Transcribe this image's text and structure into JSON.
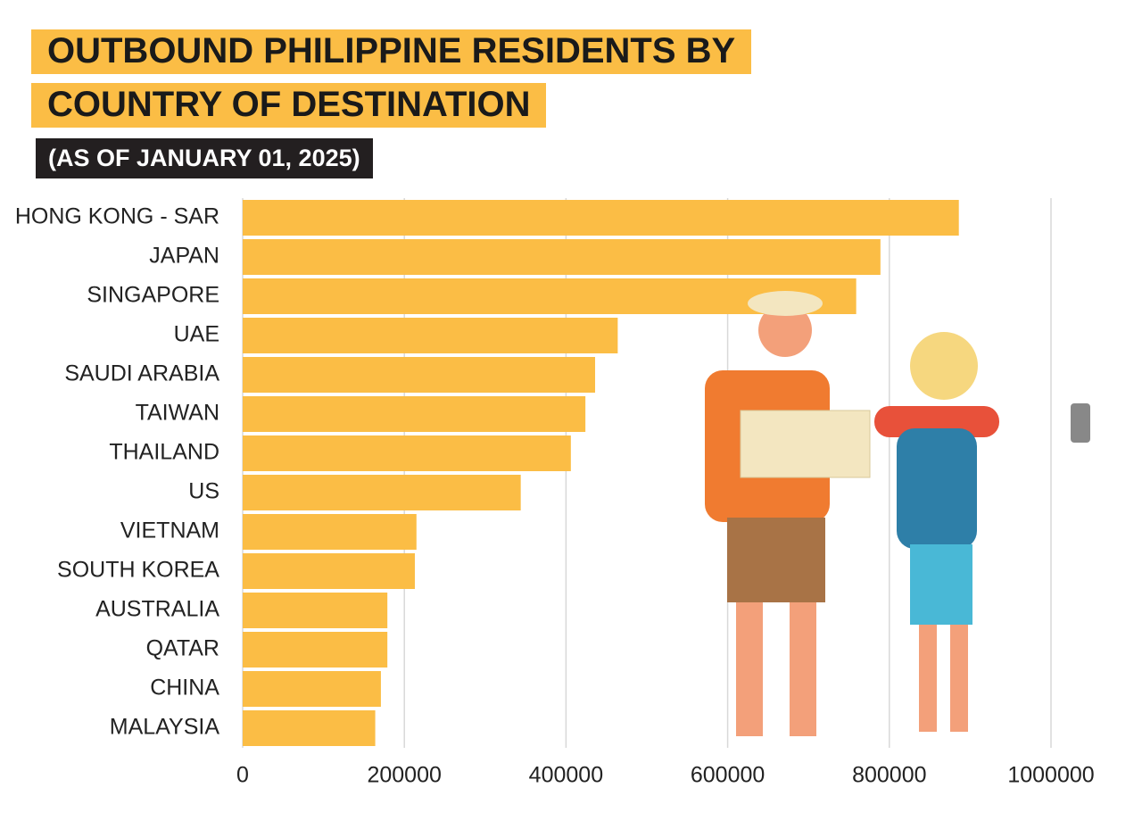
{
  "chart_data": {
    "type": "bar",
    "orientation": "horizontal",
    "title": "OUTBOUND PHILIPPINE RESIDENTS BY COUNTRY OF DESTINATION",
    "subtitle": "(AS OF JANUARY 01, 2025)",
    "categories": [
      "HONG KONG - SAR",
      "JAPAN",
      "SINGAPORE",
      "UAE",
      "SAUDI ARABIA",
      "TAIWAN",
      "THAILAND",
      "US",
      "VIETNAM",
      "SOUTH KOREA",
      "AUSTRALIA",
      "QATAR",
      "CHINA",
      "MALAYSIA"
    ],
    "values": [
      886000,
      789000,
      759000,
      464000,
      436000,
      424000,
      406000,
      344000,
      215000,
      213000,
      179000,
      179000,
      171000,
      164000
    ],
    "color": "#fbbd45",
    "xlim": [
      0,
      1000000
    ],
    "xticks": [
      0,
      200000,
      400000,
      600000,
      800000,
      1000000
    ],
    "grid": true
  }
}
